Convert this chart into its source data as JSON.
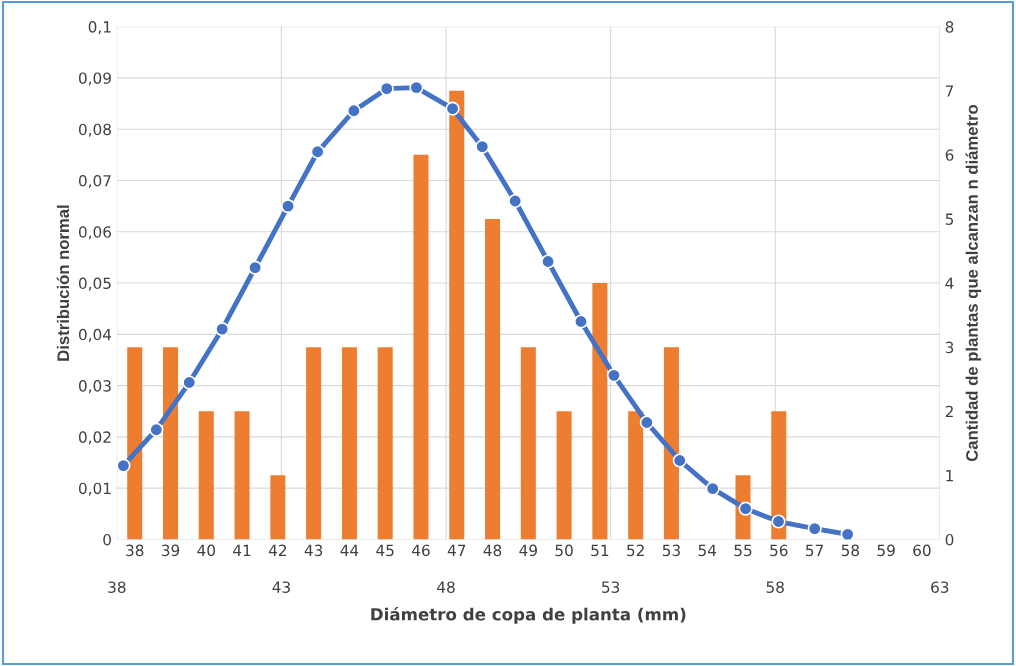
{
  "chart_data": {
    "type": "bar",
    "xlabel": "Diámetro de copa de planta (mm)",
    "ylabel": "Distribución normal",
    "y2label": "Cantidad de plantas que alcanzan n diámetro",
    "categories": [
      "38",
      "39",
      "40",
      "41",
      "42",
      "43",
      "44",
      "45",
      "46",
      "47",
      "48",
      "49",
      "50",
      "51",
      "52",
      "53",
      "54",
      "55",
      "56",
      "57",
      "58",
      "59",
      "60"
    ],
    "series": [
      {
        "axis": "y2",
        "color": "#ed7d31",
        "values": [
          3,
          3,
          2,
          2,
          1,
          3,
          3,
          3,
          6,
          7,
          5,
          3,
          2,
          4,
          2,
          3,
          0,
          1,
          2,
          0,
          0,
          0,
          0
        ]
      },
      {
        "type": "line",
        "axis": "x2",
        "color": "#4472c4",
        "marker": "circle",
        "x": [
          38.2,
          39.2,
          40.2,
          41.2,
          42.2,
          43.2,
          44.1,
          45.2,
          46.2,
          47.1,
          48.2,
          49.1,
          50.1,
          51.1,
          52.1,
          53.1,
          54.1,
          55.1,
          56.1,
          57.1,
          58.1,
          59.2,
          60.2
        ],
        "values": [
          0.0144,
          0.0214,
          0.0306,
          0.041,
          0.053,
          0.065,
          0.0756,
          0.0836,
          0.0879,
          0.0881,
          0.084,
          0.0766,
          0.066,
          0.0542,
          0.0425,
          0.032,
          0.0228,
          0.0154,
          0.0099,
          0.006,
          0.0035,
          0.0021,
          0.001
        ]
      }
    ],
    "x2lim": [
      38,
      63
    ],
    "x2ticks": [
      38,
      43,
      48,
      53,
      58,
      63
    ],
    "ylim": [
      0,
      0.1
    ],
    "yticks": [
      {
        "value": 0,
        "label": "0"
      },
      {
        "value": 0.01,
        "label": "0,01"
      },
      {
        "value": 0.02,
        "label": "0,02"
      },
      {
        "value": 0.03,
        "label": "0,03"
      },
      {
        "value": 0.04,
        "label": "0,04"
      },
      {
        "value": 0.05,
        "label": "0,05"
      },
      {
        "value": 0.06,
        "label": "0,06"
      },
      {
        "value": 0.07,
        "label": "0,07"
      },
      {
        "value": 0.08,
        "label": "0,08"
      },
      {
        "value": 0.09,
        "label": "0,09"
      },
      {
        "value": 0.1,
        "label": "0,1"
      }
    ],
    "y2lim": [
      0,
      8
    ],
    "y2ticks": [
      0,
      1,
      2,
      3,
      4,
      5,
      6,
      7,
      8
    ],
    "grid": true
  }
}
